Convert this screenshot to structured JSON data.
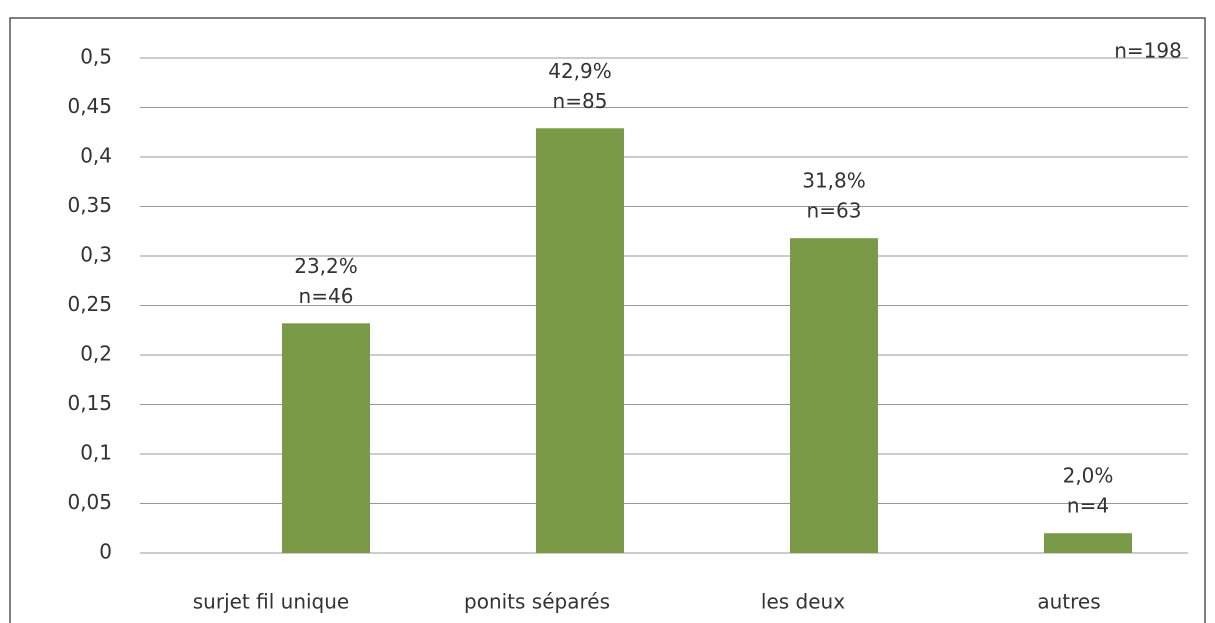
{
  "chart_data": {
    "type": "bar",
    "annotation": "n=198",
    "categories": [
      "surjet fil unique",
      "ponits séparés",
      "les deux",
      "autres"
    ],
    "values": [
      0.232,
      0.429,
      0.318,
      0.02
    ],
    "value_labels": [
      "23,2%",
      "42,9%",
      "31,8%",
      "2,0%"
    ],
    "count_labels": [
      "n=46",
      "n=85",
      "n=63",
      "n=4"
    ],
    "color": "#7b9a48",
    "ylim": [
      0,
      0.5
    ],
    "yticks": [
      0,
      {
        "value": 0.05,
        "label": "0,05"
      },
      {
        "value": 0.1,
        "label": "0,1"
      },
      {
        "value": 0.15,
        "label": "0,15"
      },
      {
        "value": 0.2,
        "label": "0,2"
      },
      {
        "value": 0.25,
        "label": "0,25"
      },
      {
        "value": 0.3,
        "label": "0,3"
      },
      {
        "value": 0.35,
        "label": "0,35"
      },
      {
        "value": 0.4,
        "label": "0,4"
      },
      {
        "value": 0.45,
        "label": "0,45"
      },
      {
        "value": 0.5,
        "label": "0,5"
      }
    ],
    "grid": true
  }
}
